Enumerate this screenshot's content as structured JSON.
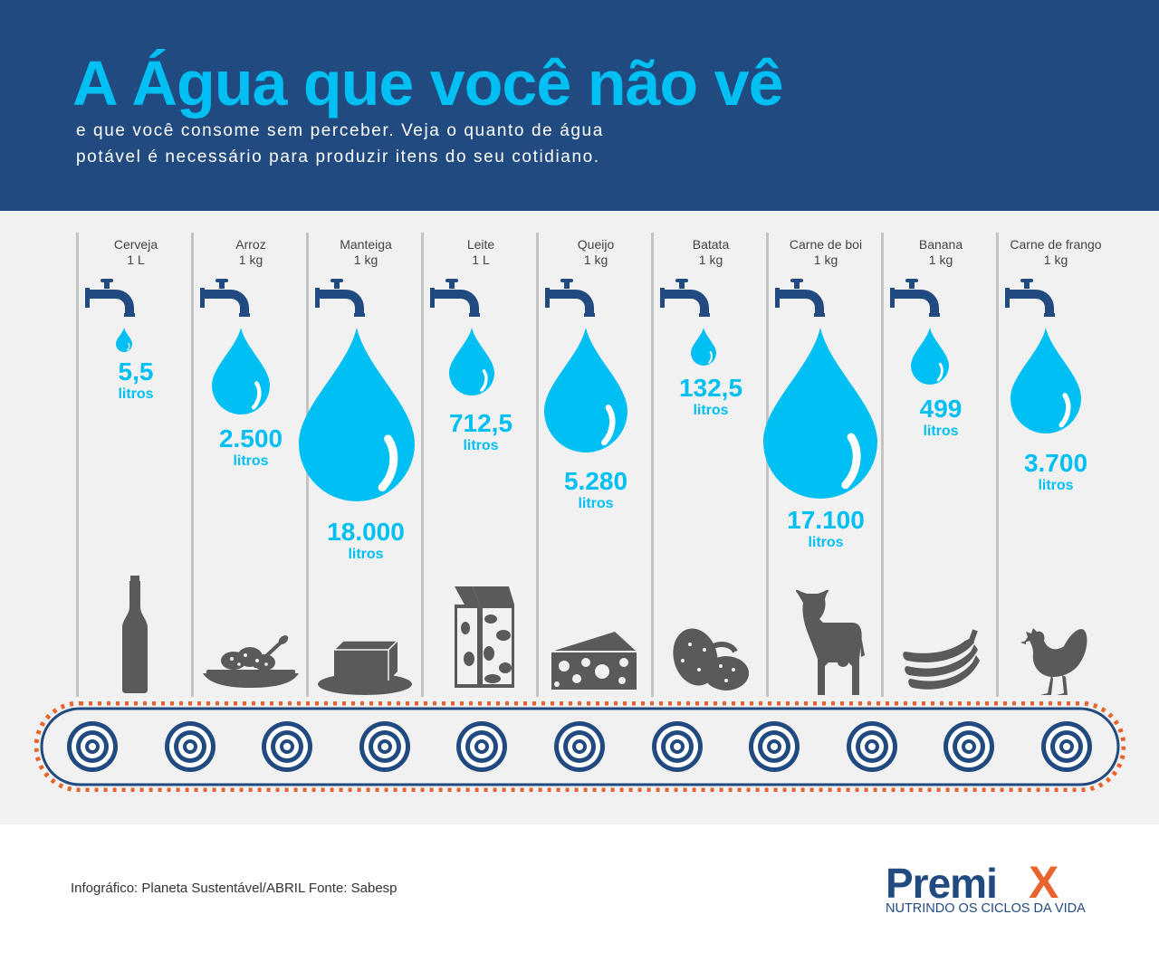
{
  "header": {
    "title": "A Água que você não vê",
    "subtitle_line1": "e que você consome sem perceber. Veja o quanto de água",
    "subtitle_line2": "potável é necessário para produzir itens do seu cotidiano."
  },
  "colors": {
    "header_bg": "#214b80",
    "accent": "#00c0f3",
    "panel_bg": "#f1f1f1",
    "icon_gray": "#5a5a5a",
    "belt_orange": "#e8642c"
  },
  "items": [
    {
      "name": "Cerveja",
      "quantity": "1 L",
      "value": "5,5",
      "unit": "litros",
      "icon": "beer-bottle-icon"
    },
    {
      "name": "Arroz",
      "quantity": "1 kg",
      "value": "2.500",
      "unit": "litros",
      "icon": "rice-bowl-icon"
    },
    {
      "name": "Manteiga",
      "quantity": "1 kg",
      "value": "18.000",
      "unit": "litros",
      "icon": "butter-icon"
    },
    {
      "name": "Leite",
      "quantity": "1 L",
      "value": "712,5",
      "unit": "litros",
      "icon": "milk-carton-icon"
    },
    {
      "name": "Queijo",
      "quantity": "1 kg",
      "value": "5.280",
      "unit": "litros",
      "icon": "cheese-icon"
    },
    {
      "name": "Batata",
      "quantity": "1 kg",
      "value": "132,5",
      "unit": "litros",
      "icon": "potato-icon"
    },
    {
      "name": "Carne de boi",
      "quantity": "1 kg",
      "value": "17.100",
      "unit": "litros",
      "icon": "cow-icon"
    },
    {
      "name": "Banana",
      "quantity": "1 kg",
      "value": "499",
      "unit": "litros",
      "icon": "banana-icon"
    },
    {
      "name": "Carne de frango",
      "quantity": "1 kg",
      "value": "3.700",
      "unit": "litros",
      "icon": "chicken-icon"
    }
  ],
  "footer": {
    "credit": "Infográfico: Planeta Sustentável/ABRIL Fonte: Sabesp",
    "brand_main": "Premi",
    "brand_x": "X",
    "brand_tagline": "NUTRINDO OS CICLOS DA VIDA"
  }
}
